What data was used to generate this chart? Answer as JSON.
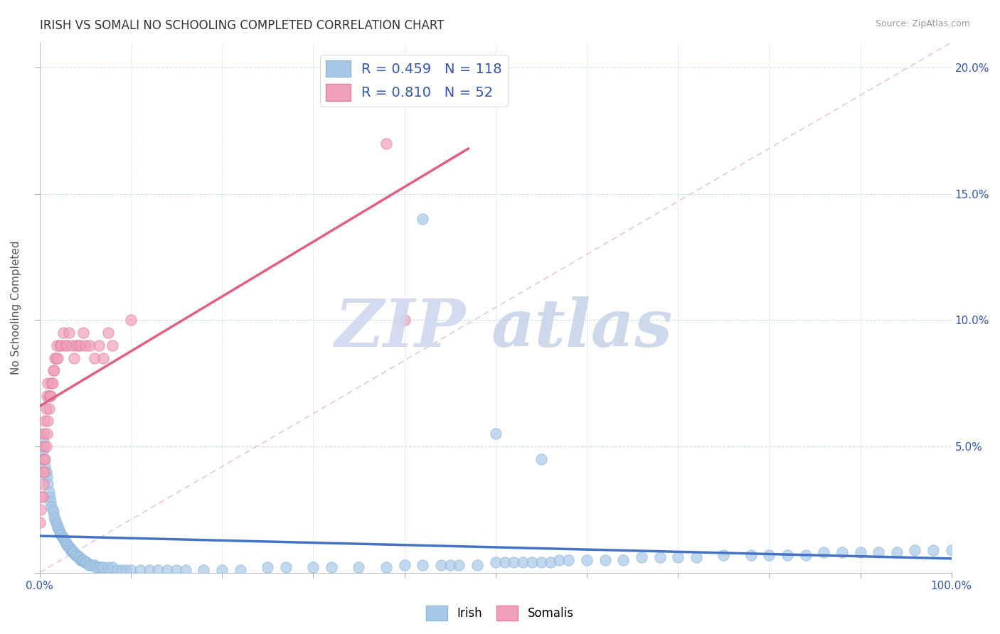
{
  "title": "IRISH VS SOMALI NO SCHOOLING COMPLETED CORRELATION CHART",
  "source_text": "Source: ZipAtlas.com",
  "ylabel": "No Schooling Completed",
  "xlim": [
    0,
    1.0
  ],
  "ylim": [
    0,
    0.21
  ],
  "irish_color": "#a8c8e8",
  "irish_edge_color": "#90b8d8",
  "somali_color": "#f0a0b8",
  "somali_edge_color": "#e080a0",
  "irish_line_color": "#4472c4",
  "somali_line_color": "#e06080",
  "diagonal_color": "#e0b0c0",
  "legend_irish_label": "R = 0.459   N = 118",
  "legend_somali_label": "R = 0.810   N = 52",
  "watermark_zip_color": "#d0d8f0",
  "watermark_atlas_color": "#c8d0e8",
  "irish_x": [
    0.0,
    0.002,
    0.003,
    0.004,
    0.005,
    0.006,
    0.007,
    0.008,
    0.009,
    0.01,
    0.011,
    0.012,
    0.013,
    0.014,
    0.015,
    0.016,
    0.017,
    0.018,
    0.019,
    0.02,
    0.021,
    0.022,
    0.023,
    0.024,
    0.025,
    0.026,
    0.027,
    0.028,
    0.029,
    0.03,
    0.031,
    0.032,
    0.033,
    0.034,
    0.035,
    0.036,
    0.037,
    0.038,
    0.039,
    0.04,
    0.041,
    0.042,
    0.043,
    0.044,
    0.045,
    0.046,
    0.047,
    0.048,
    0.049,
    0.05,
    0.052,
    0.054,
    0.056,
    0.058,
    0.06,
    0.062,
    0.065,
    0.068,
    0.07,
    0.075,
    0.08,
    0.085,
    0.09,
    0.095,
    0.1,
    0.11,
    0.12,
    0.13,
    0.14,
    0.15,
    0.16,
    0.18,
    0.2,
    0.22,
    0.25,
    0.27,
    0.3,
    0.32,
    0.35,
    0.38,
    0.4,
    0.42,
    0.44,
    0.45,
    0.46,
    0.48,
    0.5,
    0.51,
    0.52,
    0.53,
    0.54,
    0.55,
    0.56,
    0.57,
    0.58,
    0.6,
    0.62,
    0.64,
    0.66,
    0.68,
    0.7,
    0.72,
    0.75,
    0.78,
    0.8,
    0.82,
    0.84,
    0.86,
    0.88,
    0.9,
    0.92,
    0.94,
    0.96,
    0.98,
    1.0,
    0.42,
    0.5,
    0.55
  ],
  "irish_y": [
    0.055,
    0.05,
    0.048,
    0.052,
    0.045,
    0.042,
    0.04,
    0.038,
    0.035,
    0.032,
    0.03,
    0.028,
    0.026,
    0.025,
    0.024,
    0.022,
    0.021,
    0.02,
    0.019,
    0.018,
    0.017,
    0.016,
    0.015,
    0.015,
    0.014,
    0.014,
    0.013,
    0.012,
    0.012,
    0.011,
    0.011,
    0.01,
    0.01,
    0.009,
    0.009,
    0.008,
    0.008,
    0.008,
    0.007,
    0.007,
    0.007,
    0.006,
    0.006,
    0.006,
    0.005,
    0.005,
    0.005,
    0.005,
    0.004,
    0.004,
    0.004,
    0.003,
    0.003,
    0.003,
    0.003,
    0.002,
    0.002,
    0.002,
    0.002,
    0.002,
    0.002,
    0.001,
    0.001,
    0.001,
    0.001,
    0.001,
    0.001,
    0.001,
    0.001,
    0.001,
    0.001,
    0.001,
    0.001,
    0.001,
    0.002,
    0.002,
    0.002,
    0.002,
    0.002,
    0.002,
    0.003,
    0.003,
    0.003,
    0.003,
    0.003,
    0.003,
    0.004,
    0.004,
    0.004,
    0.004,
    0.004,
    0.004,
    0.004,
    0.005,
    0.005,
    0.005,
    0.005,
    0.005,
    0.006,
    0.006,
    0.006,
    0.006,
    0.007,
    0.007,
    0.007,
    0.007,
    0.007,
    0.008,
    0.008,
    0.008,
    0.008,
    0.008,
    0.009,
    0.009,
    0.009,
    0.14,
    0.055,
    0.045
  ],
  "somali_x": [
    0.0,
    0.001,
    0.002,
    0.003,
    0.003,
    0.004,
    0.004,
    0.005,
    0.005,
    0.005,
    0.006,
    0.006,
    0.007,
    0.007,
    0.008,
    0.008,
    0.009,
    0.009,
    0.01,
    0.01,
    0.011,
    0.012,
    0.013,
    0.014,
    0.015,
    0.016,
    0.017,
    0.018,
    0.019,
    0.02,
    0.022,
    0.024,
    0.026,
    0.028,
    0.03,
    0.032,
    0.035,
    0.038,
    0.04,
    0.042,
    0.045,
    0.048,
    0.05,
    0.055,
    0.06,
    0.065,
    0.07,
    0.075,
    0.08,
    0.38,
    0.4,
    0.1
  ],
  "somali_y": [
    0.02,
    0.025,
    0.03,
    0.03,
    0.04,
    0.035,
    0.045,
    0.04,
    0.05,
    0.055,
    0.045,
    0.06,
    0.05,
    0.065,
    0.055,
    0.07,
    0.06,
    0.075,
    0.065,
    0.07,
    0.07,
    0.07,
    0.075,
    0.075,
    0.08,
    0.08,
    0.085,
    0.085,
    0.09,
    0.085,
    0.09,
    0.09,
    0.095,
    0.09,
    0.09,
    0.095,
    0.09,
    0.085,
    0.09,
    0.09,
    0.09,
    0.095,
    0.09,
    0.09,
    0.085,
    0.09,
    0.085,
    0.095,
    0.09,
    0.17,
    0.1,
    0.1
  ]
}
